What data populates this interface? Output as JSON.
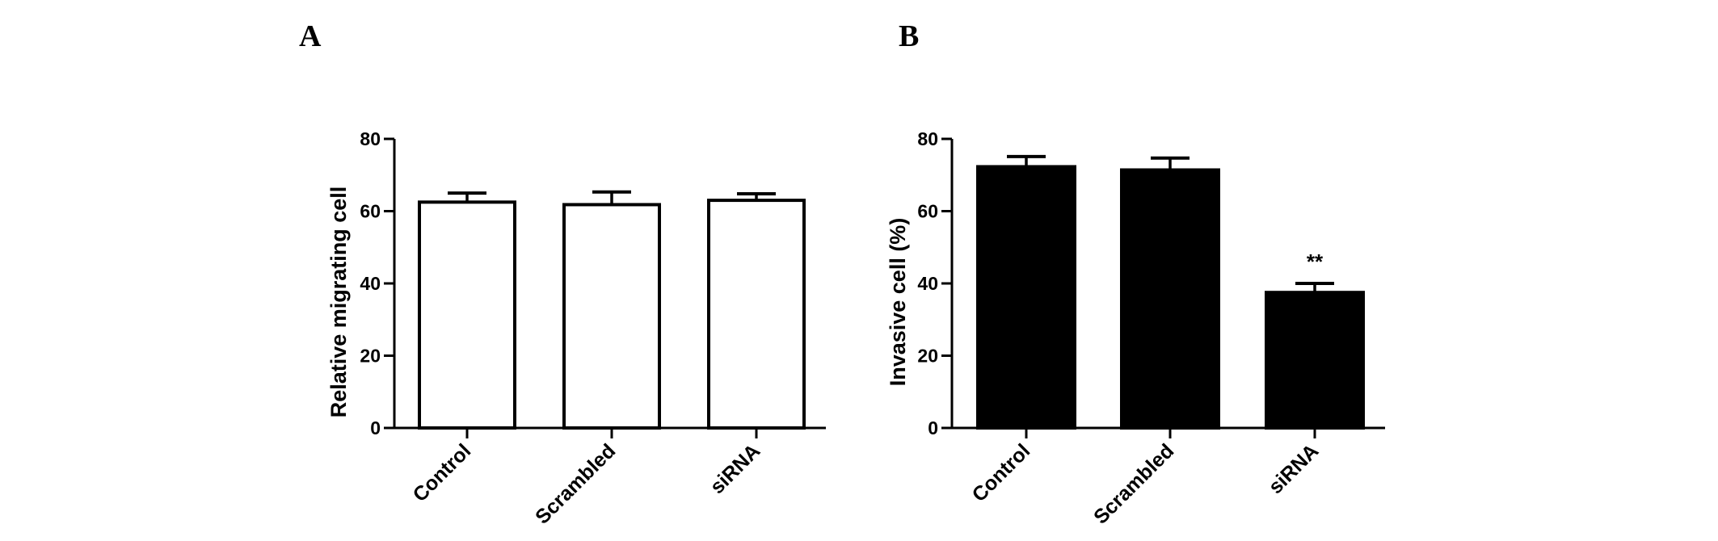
{
  "chart_data": [
    {
      "type": "bar",
      "panel_label": "A",
      "categories": [
        "Control",
        "Scrambled",
        "siRNA"
      ],
      "values": [
        62.5,
        61.8,
        63.0
      ],
      "errors": [
        2.5,
        3.5,
        1.8
      ],
      "ylabel": "Relative migrating cell",
      "ylim": [
        0,
        80
      ],
      "yticks": [
        0,
        20,
        40,
        60,
        80
      ],
      "bar_fill": "#ffffff",
      "bar_stroke": "#000000",
      "annotations": [
        "",
        "",
        ""
      ]
    },
    {
      "type": "bar",
      "panel_label": "B",
      "categories": [
        "Control",
        "Scrambled",
        "siRNA"
      ],
      "values": [
        72.3,
        71.4,
        37.5
      ],
      "errors": [
        2.8,
        3.3,
        2.5
      ],
      "ylabel": "Invasive cell (%)",
      "ylim": [
        0,
        80
      ],
      "yticks": [
        0,
        20,
        40,
        60,
        80
      ],
      "bar_fill": "#000000",
      "bar_stroke": "#000000",
      "annotations": [
        "",
        "",
        "**"
      ]
    }
  ]
}
